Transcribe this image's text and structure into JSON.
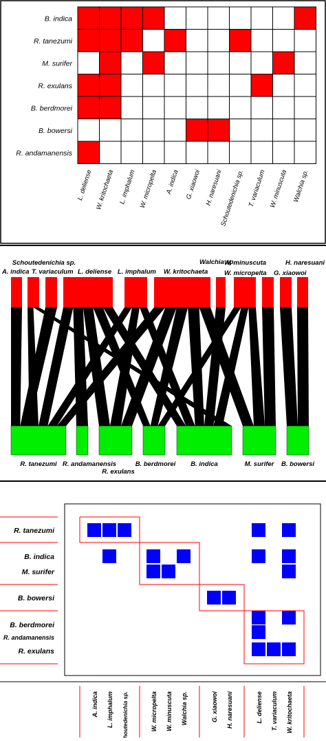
{
  "panel_a": {
    "rows": [
      "B. indica",
      "R. tanezumi",
      "M. surifer",
      "R. exulans",
      "B. berdmorei",
      "B. bowersi",
      "R. andamanensis"
    ],
    "cols": [
      "L. deliense",
      "W. kritochaeta",
      "L. imphalum",
      "W. micropelta",
      "A. indica",
      "G. xiaowoi",
      "H. naresuani",
      "Schoutedenichia sp.",
      "T. variaculum",
      "W. minuscuta",
      "Walchia sp."
    ],
    "cells": [
      [
        1,
        1,
        1,
        1,
        0,
        0,
        0,
        0,
        0,
        0,
        1
      ],
      [
        1,
        1,
        1,
        0,
        1,
        0,
        0,
        1,
        0,
        0,
        0
      ],
      [
        0,
        1,
        0,
        1,
        0,
        0,
        0,
        0,
        0,
        1,
        0
      ],
      [
        1,
        1,
        0,
        0,
        0,
        0,
        0,
        0,
        1,
        0,
        0
      ],
      [
        1,
        1,
        0,
        0,
        0,
        0,
        0,
        0,
        0,
        0,
        0
      ],
      [
        0,
        0,
        0,
        0,
        0,
        1,
        1,
        0,
        0,
        0,
        0
      ],
      [
        1,
        0,
        0,
        0,
        0,
        0,
        0,
        0,
        0,
        0,
        0
      ]
    ],
    "fill_color": "#ff0000"
  },
  "panel_b": {
    "top_labels": [
      "Schoutedenichia sp.",
      "A. indica",
      "T. variaculum",
      "L. deliense",
      "L. imphalum",
      "W. kritochaeta",
      "Walchia sp.",
      "W. minuscuta",
      "H. naresuani",
      "W. micropelta",
      "G. xiaowoi"
    ],
    "bottom_labels": [
      "R. tanezumi",
      "R. andamanensis",
      "R. exulans",
      "B. berdmorei",
      "B. indica",
      "M. surifer",
      "B. bowersi"
    ],
    "top_color": "#ff0000",
    "bottom_color": "#00ee00",
    "link_color": "#000000"
  },
  "panel_c": {
    "row_labels": [
      "R. tanezumi",
      "B. indica",
      "M. surifer",
      "B. bowersi",
      "B. berdmorei",
      "R. andamanensis",
      "R. exulans"
    ],
    "col_labels": [
      "A. indica",
      "L. imphalum",
      "Schoutedenichia sp.",
      "W. micropelta",
      "W. minuscuta",
      "Walchia sp.",
      "G. xiaowoi",
      "H. naresuani",
      "L. deliense",
      "T. variaculum",
      "W. kritochaeta"
    ],
    "cells": [
      [
        1,
        1,
        1,
        0,
        0,
        0,
        0,
        0,
        1,
        0,
        1
      ],
      [
        0,
        1,
        0,
        1,
        0,
        1,
        0,
        0,
        1,
        0,
        1
      ],
      [
        0,
        0,
        0,
        1,
        1,
        0,
        0,
        0,
        0,
        0,
        1
      ],
      [
        0,
        0,
        0,
        0,
        0,
        0,
        1,
        1,
        0,
        0,
        0
      ],
      [
        0,
        0,
        0,
        0,
        0,
        0,
        0,
        0,
        1,
        0,
        1
      ],
      [
        0,
        0,
        0,
        0,
        0,
        0,
        0,
        0,
        1,
        0,
        0
      ],
      [
        0,
        0,
        0,
        0,
        0,
        0,
        0,
        0,
        1,
        1,
        1
      ]
    ],
    "fill_color": "#0000ff",
    "module_color": "#ff0000"
  }
}
